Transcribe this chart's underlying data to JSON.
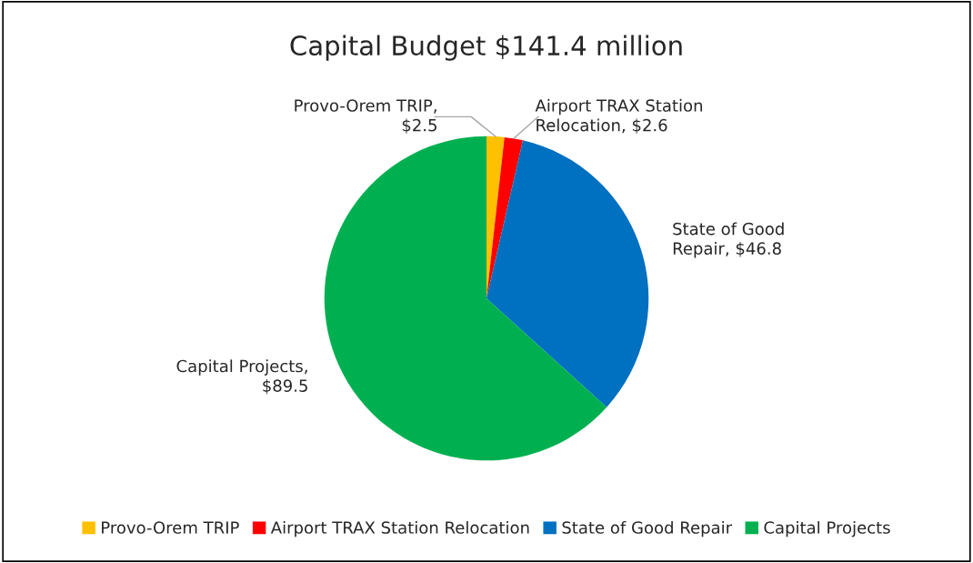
{
  "chart_data": {
    "type": "pie",
    "title": "Capital Budget $141.4 million",
    "categories": [
      "Provo-Orem TRIP",
      "Airport TRAX Station Relocation",
      "State of Good Repair",
      "Capital Projects"
    ],
    "values": [
      2.5,
      2.6,
      46.8,
      89.5
    ],
    "colors": [
      "#ffc000",
      "#ff0000",
      "#0070c0",
      "#00b050"
    ],
    "value_labels": [
      "Provo-Orem TRIP,\n$2.5",
      "Airport TRAX Station\nRelocation, $2.6",
      "State of Good\nRepair, $46.8",
      "Capital Projects,\n$89.5"
    ],
    "legend": "bottom"
  }
}
